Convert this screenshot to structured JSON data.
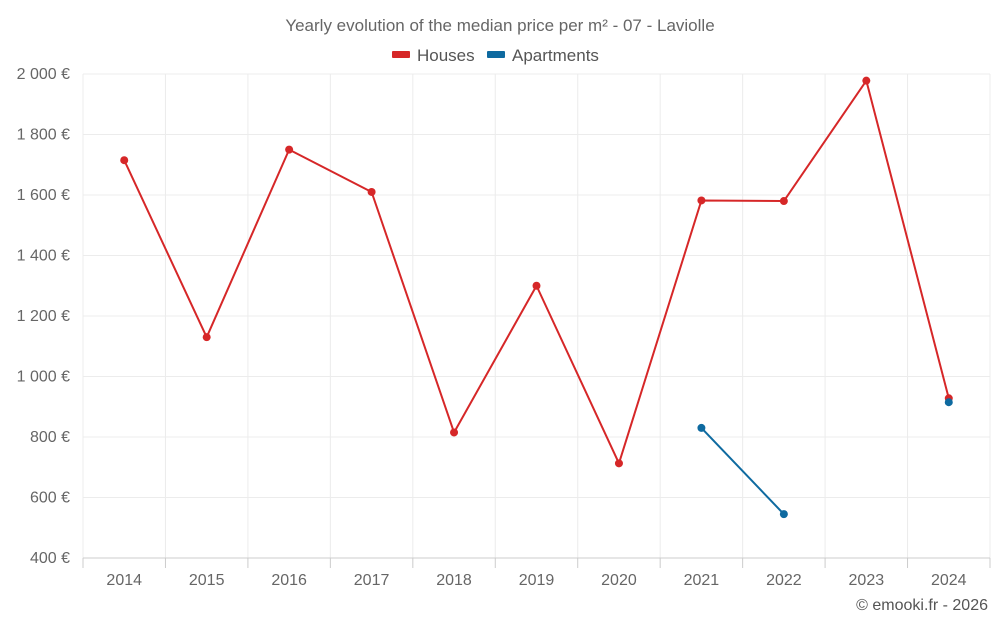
{
  "chart_data": {
    "type": "line",
    "title": "Yearly evolution of the median price per m² - 07 - Laviolle",
    "categories": [
      "2014",
      "2015",
      "2016",
      "2017",
      "2018",
      "2019",
      "2020",
      "2021",
      "2022",
      "2023",
      "2024"
    ],
    "series": [
      {
        "name": "Houses",
        "color": "#d62728",
        "values": [
          1715,
          1130,
          1750,
          1610,
          815,
          1300,
          713,
          1582,
          1580,
          1978,
          928
        ]
      },
      {
        "name": "Apartments",
        "color": "#0e6aa0",
        "values": [
          null,
          null,
          null,
          null,
          null,
          null,
          null,
          830,
          545,
          null,
          915
        ]
      }
    ],
    "y_ticks": [
      400,
      600,
      800,
      1000,
      1200,
      1400,
      1600,
      1800,
      2000
    ],
    "y_tick_labels": [
      "400 €",
      "600 €",
      "800 €",
      "1 000 €",
      "1 200 €",
      "1 400 €",
      "1 600 €",
      "1 800 €",
      "2 000 €"
    ],
    "ylim": [
      400,
      2000
    ],
    "xlabel": "",
    "ylabel": "",
    "legend_position": "top-center",
    "grid": true,
    "credit": "© emooki.fr - 2026"
  }
}
